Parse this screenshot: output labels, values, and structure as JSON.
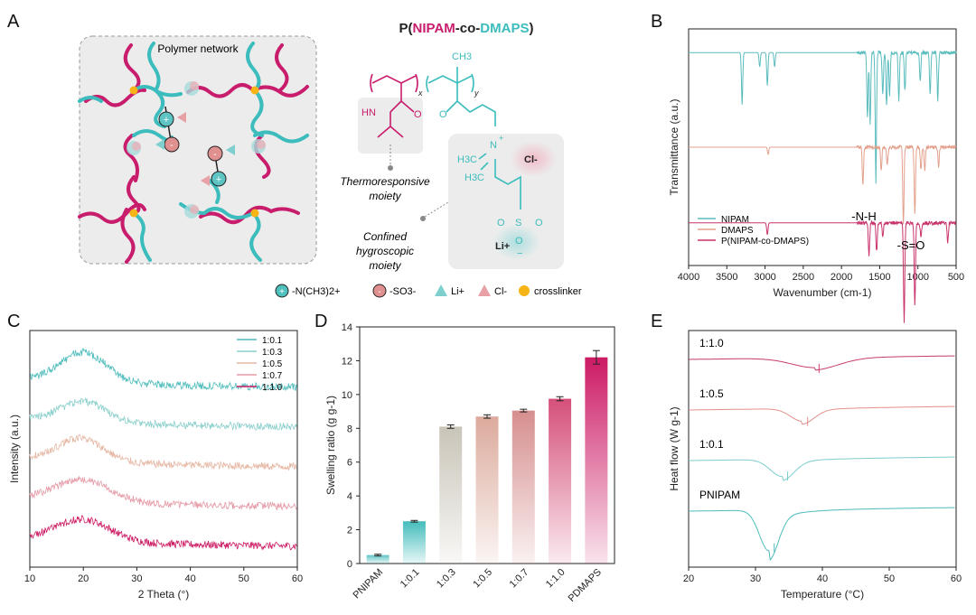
{
  "panels": {
    "A": {
      "letter": "A",
      "network_title": "Polymer network",
      "copolymer": {
        "prefix": "P(",
        "nipam": "NIPAM",
        "sep": "-co-",
        "dmaps": "DMAPS",
        "suffix": ")"
      },
      "chem": {
        "ch3_top": "CH3",
        "x_sub": "x",
        "y_sub": "y",
        "hn": "HN",
        "o1": "O",
        "o2": "O",
        "n_plus": "N",
        "plus": "+",
        "h3c1": "H3C",
        "h3c2": "H3C",
        "cl": "Cl-",
        "s": "S",
        "o3": "O",
        "o4": "O",
        "o5": "O",
        "minus": "−",
        "li": "Li+"
      },
      "thermo_label_line1": "Thermoresponsive",
      "thermo_label_line2": "moiety",
      "hygro_label_line1": "Confined",
      "hygro_label_line2": "hygroscopic",
      "hygro_label_line3": "moiety",
      "legend": [
        {
          "label": "-N(CH3)2+",
          "color": "#4fc0bd"
        },
        {
          "label": "-SO3-",
          "color": "#e0908f"
        },
        {
          "label": "Li+",
          "color": "#7fcfcf"
        },
        {
          "label": "Cl-",
          "color": "#e6a0a6"
        },
        {
          "label": "crosslinker",
          "color": "#f6b416"
        }
      ],
      "colors": {
        "teal": "#3cbcbc",
        "magenta": "#c81c6c",
        "cross": "#f6b416"
      }
    },
    "B": {
      "letter": "B"
    },
    "C": {
      "letter": "C"
    },
    "D": {
      "letter": "D"
    },
    "E": {
      "letter": "E"
    }
  },
  "chart_data": [
    {
      "panel": "B",
      "type": "line",
      "title": "",
      "xlabel": "Wavenumber (cm-1)",
      "ylabel": "Transmittance (a.u.)",
      "xlim": [
        4000,
        500
      ],
      "xticks": [
        4000,
        3500,
        3000,
        2500,
        2000,
        1500,
        1000,
        500
      ],
      "annotations": [
        "-N-H",
        "-S=O"
      ],
      "series": [
        {
          "name": "NIPAM",
          "color": "#5bbcbe",
          "baseline": 0.9,
          "peaks": [
            [
              3300,
              0.22
            ],
            [
              3070,
              0.06
            ],
            [
              2970,
              0.14
            ],
            [
              2875,
              0.06
            ],
            [
              1660,
              0.28
            ],
            [
              1625,
              0.3
            ],
            [
              1550,
              0.55
            ],
            [
              1460,
              0.18
            ],
            [
              1410,
              0.22
            ],
            [
              1370,
              0.18
            ],
            [
              1250,
              0.2
            ],
            [
              1170,
              0.16
            ],
            [
              970,
              0.12
            ],
            [
              840,
              0.18
            ],
            [
              740,
              0.2
            ]
          ]
        },
        {
          "name": "DMAPS",
          "color": "#e3a08c",
          "baseline": 0.5,
          "peaks": [
            [
              2960,
              0.03
            ],
            [
              1720,
              0.16
            ],
            [
              1480,
              0.1
            ],
            [
              1400,
              0.08
            ],
            [
              1190,
              0.32
            ],
            [
              1040,
              0.28
            ],
            [
              960,
              0.1
            ],
            [
              910,
              0.1
            ],
            [
              730,
              0.08
            ]
          ]
        },
        {
          "name": "P(NIPAM-co-DMAPS)",
          "color": "#c8336b",
          "baseline": 0.18,
          "peaks": [
            [
              2970,
              0.05
            ],
            [
              1640,
              0.14
            ],
            [
              1540,
              0.12
            ],
            [
              1460,
              0.06
            ],
            [
              1180,
              0.42
            ],
            [
              1040,
              0.35
            ],
            [
              960,
              0.06
            ],
            [
              610,
              0.08
            ]
          ]
        }
      ]
    },
    {
      "panel": "C",
      "type": "line",
      "title": "",
      "xlabel": "2 Theta (°)",
      "ylabel": "Intensity (a.u.)",
      "xlim": [
        10,
        60
      ],
      "xticks": [
        10,
        20,
        30,
        40,
        50,
        60
      ],
      "series": [
        {
          "name": "1:0.1",
          "color": "#4fbcbc",
          "offset": 4,
          "peak": 20,
          "height": 1.1,
          "width": 6
        },
        {
          "name": "1:0.3",
          "color": "#8cd0cc",
          "offset": 3,
          "peak": 20,
          "height": 0.75,
          "width": 6
        },
        {
          "name": "1:0.5",
          "color": "#e6b7a4",
          "offset": 2,
          "peak": 19.5,
          "height": 0.85,
          "width": 6
        },
        {
          "name": "1:0.7",
          "color": "#e59aa6",
          "offset": 1,
          "peak": 20,
          "height": 0.8,
          "width": 7
        },
        {
          "name": "1:1.0",
          "color": "#cc1c64",
          "offset": 0,
          "peak": 20,
          "height": 0.8,
          "width": 7
        }
      ]
    },
    {
      "panel": "D",
      "type": "bar",
      "title": "",
      "xlabel": "",
      "ylabel": "Swelling ratio (g g-1)",
      "ylim": [
        0,
        14
      ],
      "yticks": [
        0,
        2,
        4,
        6,
        8,
        10,
        12,
        14
      ],
      "categories": [
        "PNIPAM",
        "1:0.1",
        "1:0.3",
        "1:0.5",
        "1:0.7",
        "1:1.0",
        "PDMAPS"
      ],
      "values": [
        0.5,
        2.5,
        8.1,
        8.7,
        9.05,
        9.75,
        12.2
      ],
      "errors": [
        0.05,
        0.05,
        0.1,
        0.1,
        0.08,
        0.12,
        0.4
      ],
      "colors": [
        "#5fc4c4",
        "#44bcbc",
        "#c9c4b8",
        "#dcaa9c",
        "#d68e8e",
        "#d5507a",
        "#cc1a64"
      ]
    },
    {
      "panel": "E",
      "type": "line",
      "title": "",
      "xlabel": "Temperature (°C)",
      "ylabel": "Heat flow (W g-1)",
      "xlim": [
        20,
        60
      ],
      "xticks": [
        20,
        30,
        40,
        50,
        60
      ],
      "series": [
        {
          "name": "1:1.0",
          "color": "#c83a6c",
          "offset": 3,
          "center": 39,
          "depth": 0.22,
          "width": 5
        },
        {
          "name": "1:0.5",
          "color": "#e3908c",
          "offset": 2,
          "center": 37,
          "depth": 0.28,
          "width": 2.5
        },
        {
          "name": "1:0.1",
          "color": "#7ccccc",
          "offset": 1,
          "center": 34,
          "depth": 0.38,
          "width": 2.5
        },
        {
          "name": "PNIPAM",
          "color": "#4ebcbc",
          "offset": 0,
          "center": 32,
          "depth": 0.9,
          "width": 2
        }
      ]
    }
  ]
}
